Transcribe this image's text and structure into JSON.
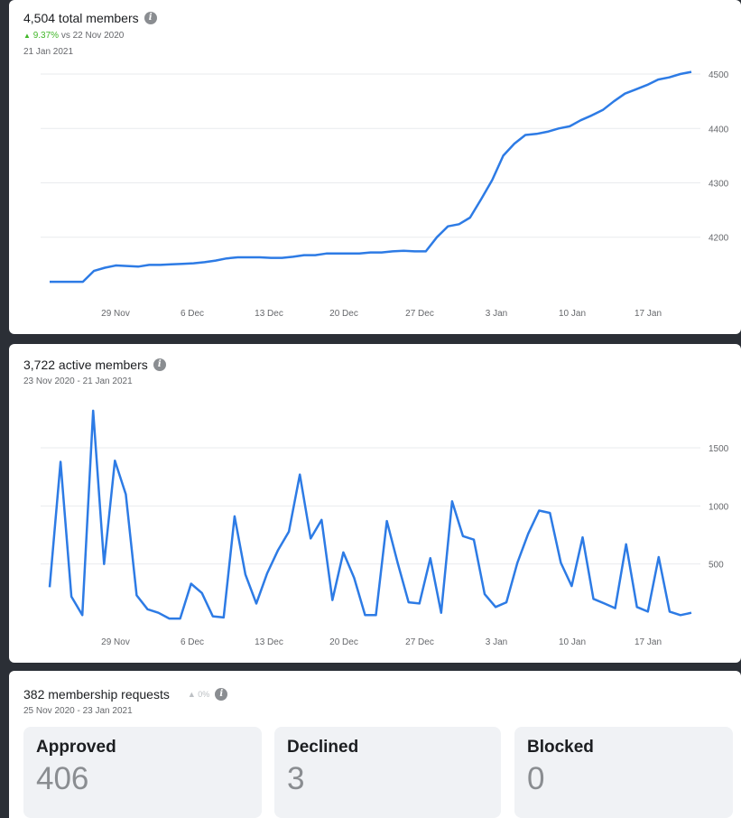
{
  "total_members": {
    "title": "4,504 total members",
    "trend_pct": "9.37%",
    "trend_text": "vs 22 Nov 2020",
    "date": "21 Jan 2021",
    "info_icon": "info-icon",
    "chart_data": {
      "type": "line",
      "x_tick_labels": [
        "29 Nov",
        "6 Dec",
        "13 Dec",
        "20 Dec",
        "27 Dec",
        "3 Jan",
        "10 Jan",
        "17 Jan"
      ],
      "y_tick_labels": [
        "4200",
        "4300",
        "4400",
        "4500"
      ],
      "ylim": [
        4080,
        4520
      ],
      "line_color": "#2d7be5",
      "grid": true,
      "series": [
        {
          "values": [
            4118,
            4118,
            4118,
            4118,
            4138,
            4144,
            4148,
            4147,
            4146,
            4149,
            4149,
            4150,
            4151,
            4152,
            4154,
            4157,
            4161,
            4163,
            4163,
            4163,
            4162,
            4162,
            4164,
            4167,
            4167,
            4170,
            4170,
            4170,
            4170,
            4172,
            4172,
            4174,
            4175,
            4174,
            4174,
            4200,
            4220,
            4224,
            4236,
            4270,
            4305,
            4350,
            4372,
            4388,
            4390,
            4394,
            4400,
            4404,
            4415,
            4424,
            4434,
            4450,
            4464,
            4472,
            4480,
            4490,
            4494,
            4500,
            4504
          ]
        }
      ]
    }
  },
  "active_members": {
    "title": "3,722 active members",
    "date_range": "23 Nov 2020 - 21 Jan 2021",
    "info_icon": "info-icon",
    "chart_data": {
      "type": "line",
      "x_tick_labels": [
        "29 Nov",
        "6 Dec",
        "13 Dec",
        "20 Dec",
        "27 Dec",
        "3 Jan",
        "10 Jan",
        "17 Jan"
      ],
      "y_tick_labels": [
        "500",
        "1000",
        "1500"
      ],
      "ylim": [
        0,
        1850
      ],
      "line_color": "#2d7be5",
      "grid": true,
      "series": [
        {
          "values": [
            300,
            1380,
            220,
            60,
            1820,
            500,
            1390,
            1100,
            230,
            110,
            80,
            30,
            30,
            330,
            250,
            50,
            40,
            910,
            410,
            160,
            420,
            620,
            780,
            1270,
            720,
            880,
            190,
            600,
            380,
            60,
            60,
            870,
            510,
            170,
            160,
            550,
            80,
            1040,
            740,
            710,
            240,
            130,
            170,
            510,
            760,
            960,
            940,
            510,
            310,
            730,
            200,
            160,
            120,
            670,
            130,
            90,
            560,
            90,
            60,
            80
          ]
        }
      ]
    }
  },
  "requests": {
    "title": "382 membership requests",
    "trend_pct": "0%",
    "date_range": "25 Nov 2020 - 23 Jan 2021",
    "info_icon": "info-icon",
    "boxes": [
      {
        "label": "Approved",
        "value": "406"
      },
      {
        "label": "Declined",
        "value": "3"
      },
      {
        "label": "Blocked",
        "value": "0"
      }
    ]
  }
}
